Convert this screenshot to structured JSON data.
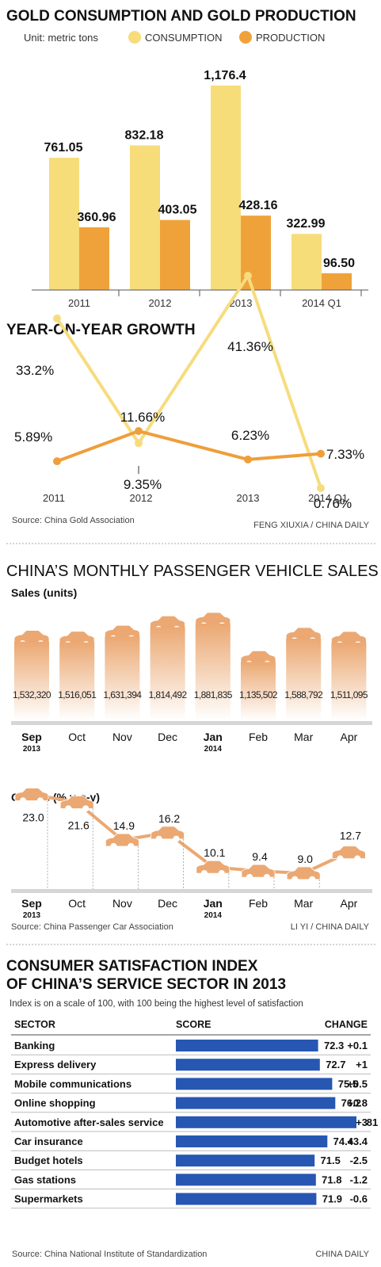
{
  "colors": {
    "consumption": "#f7dc7a",
    "production": "#f0a23a",
    "vehicle": "#eba872",
    "csi_bar": "#2757b3",
    "line_consumption": "#f6dc7d",
    "line_production": "#ef9e3b"
  },
  "section1": {
    "title": "GOLD CONSUMPTION AND GOLD PRODUCTION",
    "unit": "Unit: metric tons",
    "legend": [
      "CONSUMPTION",
      "PRODUCTION"
    ],
    "growth_title": "YEAR-ON-YEAR GROWTH",
    "source": "Source: China Gold Association",
    "credit": "FENG XIUXIA / CHINA DAILY"
  },
  "section2": {
    "title": "CHINA’S MONTHLY PASSENGER VEHICLE SALES",
    "sales_label": "Sales (units)",
    "growth_label": "Growth (% y-o-y)",
    "source": "Source: China Passenger Car Association",
    "credit": "LI YI / CHINA DAILY"
  },
  "section3": {
    "title_line1": "CONSUMER SATISFACTION INDEX",
    "title_line2": "OF CHINA’S SERVICE SECTOR IN 2013",
    "subtitle": "Index is on a scale of 100, with 100 being the highest level of satisfaction",
    "col_sector": "SECTOR",
    "col_score": "SCORE",
    "col_change": "CHANGE",
    "source": "Source: China National Institute of Standardization",
    "credit": "CHINA DAILY"
  },
  "chart_data": [
    {
      "type": "bar",
      "categories": [
        "2011",
        "2012",
        "2013",
        "2014 Q1"
      ],
      "series": [
        {
          "name": "CONSUMPTION",
          "values": [
            761.05,
            832.18,
            1176.4,
            322.99
          ],
          "labels": [
            "761.05",
            "832.18",
            "1,176.4",
            "322.99"
          ]
        },
        {
          "name": "PRODUCTION",
          "values": [
            360.96,
            403.05,
            428.16,
            96.5
          ],
          "labels": [
            "360.96",
            "403.05",
            "428.16",
            "96.50"
          ]
        }
      ],
      "title": "GOLD CONSUMPTION AND GOLD PRODUCTION",
      "ylabel": "Unit: metric tons",
      "ylim": [
        0,
        1176.4
      ]
    },
    {
      "type": "line",
      "categories": [
        "2011",
        "2012",
        "2013",
        "2014 Q1"
      ],
      "series": [
        {
          "name": "CONSUMPTION",
          "values": [
            33.2,
            9.35,
            41.36,
            0.76
          ],
          "labels": [
            "33.2%",
            "9.35%",
            "41.36%",
            "0.76%"
          ]
        },
        {
          "name": "PRODUCTION",
          "values": [
            5.89,
            11.66,
            6.23,
            7.33
          ],
          "labels": [
            "5.89%",
            "11.66%",
            "6.23%",
            "7.33%"
          ]
        }
      ],
      "title": "YEAR-ON-YEAR GROWTH"
    },
    {
      "type": "bar",
      "categories": [
        "Sep",
        "Oct",
        "Nov",
        "Dec",
        "Jan",
        "Feb",
        "Mar",
        "Apr"
      ],
      "category_sublabels": [
        "2013",
        "",
        "",
        "",
        "2014",
        "",
        "",
        ""
      ],
      "values": [
        1532320,
        1516051,
        1631394,
        1814492,
        1881835,
        1135502,
        1588792,
        1511095
      ],
      "labels": [
        "1,532,320",
        "1,516,051",
        "1,631,394",
        "1,814,492",
        "1,881,835",
        "1,135,502",
        "1,588,792",
        "1,511,095"
      ],
      "title": "CHINA’S MONTHLY PASSENGER VEHICLE SALES",
      "ylabel": "Sales (units)"
    },
    {
      "type": "line",
      "categories": [
        "Sep",
        "Oct",
        "Nov",
        "Dec",
        "Jan",
        "Feb",
        "Mar",
        "Apr"
      ],
      "category_sublabels": [
        "2013",
        "",
        "",
        "",
        "2014",
        "",
        "",
        ""
      ],
      "values": [
        23.0,
        21.6,
        14.9,
        16.2,
        10.1,
        9.4,
        9.0,
        12.7
      ],
      "labels": [
        "23.0",
        "21.6",
        "14.9",
        "16.2",
        "10.1",
        "9.4",
        "9.0",
        "12.7"
      ],
      "ylabel": "Growth (% y-o-y)"
    },
    {
      "type": "bar",
      "categories": [
        "Banking",
        "Express delivery",
        "Mobile communications",
        "Online shopping",
        "Automotive after-sales service",
        "Car insurance",
        "Budget hotels",
        "Gas stations",
        "Supermarkets"
      ],
      "values": [
        72.3,
        72.7,
        75.5,
        76.2,
        81,
        74.4,
        71.5,
        71.8,
        71.9
      ],
      "changes": [
        "+0.1",
        "+1",
        "+0.5",
        "+0.8",
        "+3",
        "+3.4",
        "-2.5",
        "-1.2",
        "-0.6"
      ],
      "title": "CONSUMER SATISFACTION INDEX OF CHINA’S SERVICE SECTOR IN 2013"
    }
  ]
}
